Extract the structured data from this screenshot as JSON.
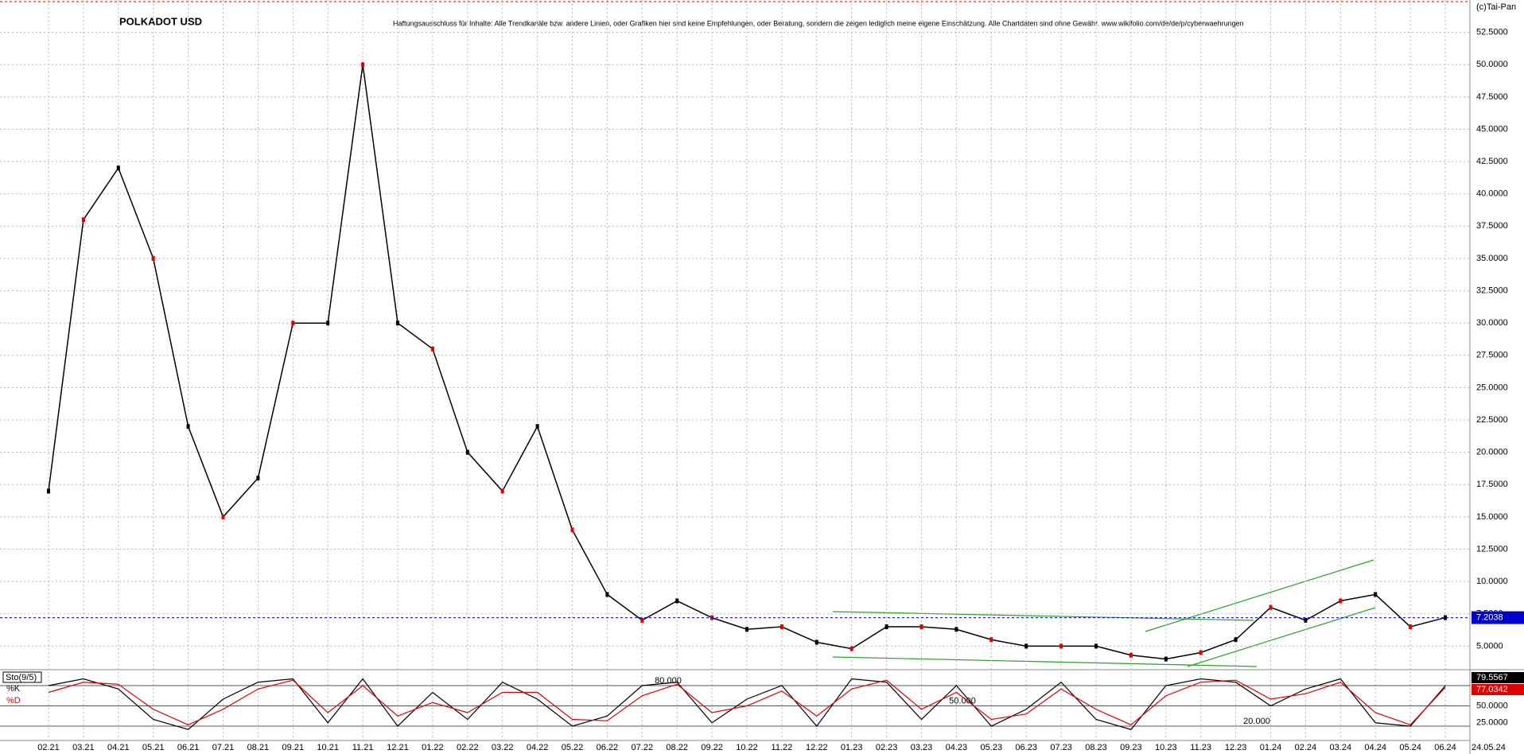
{
  "chart_data": [
    {
      "type": "line",
      "title": "POLKADOT USD",
      "disclaimer": "Haftungsausschluss für Inhalte: Alle Trendkanäle bzw. andere Linien, oder Grafiken hier sind keine Empfehlungen, oder Beratung, sondern die zeigen lediglich meine eigene Einschätzung. Alle Chartdaten sind ohne Gewähr.  www.wikifolio.com/de/de/p/cyberwaehrungen",
      "source": "(c)Tai-Pan",
      "date_label": "24.05.24",
      "categories": [
        "02.21",
        "03.21",
        "04.21",
        "05.21",
        "06.21",
        "07.21",
        "08.21",
        "09.21",
        "10.21",
        "11.21",
        "12.21",
        "01.22",
        "02.22",
        "03.22",
        "04.22",
        "05.22",
        "06.22",
        "07.22",
        "08.22",
        "09.22",
        "10.22",
        "11.22",
        "12.22",
        "01.23",
        "02.23",
        "03.23",
        "04.23",
        "05.23",
        "06.23",
        "07.23",
        "08.23",
        "09.23",
        "10.23",
        "11.23",
        "12.23",
        "01.24",
        "02.24",
        "03.24",
        "04.24",
        "05.24",
        "06.24"
      ],
      "values": [
        17,
        38,
        42,
        35,
        22,
        15,
        18,
        30,
        30,
        50,
        30,
        28,
        20,
        17,
        22,
        14,
        9,
        7,
        8.5,
        7.2,
        6.3,
        6.5,
        5.3,
        4.8,
        6.5,
        6.5,
        6.3,
        5.5,
        5,
        5,
        5,
        4.3,
        4,
        4.5,
        5.5,
        8,
        7,
        8.5,
        9,
        6.5,
        7.2038
      ],
      "color": "#000000",
      "current_color": "#0000cc",
      "ylim": [
        3.3,
        55
      ],
      "yticks": [
        {
          "value": 5,
          "label": "5.0000"
        },
        {
          "value": 7.5,
          "label": "7.5000"
        },
        {
          "value": 10,
          "label": "10.0000"
        },
        {
          "value": 12.5,
          "label": "12.5000"
        },
        {
          "value": 15,
          "label": "15.0000"
        },
        {
          "value": 17.5,
          "label": "17.5000"
        },
        {
          "value": 20,
          "label": "20.0000"
        },
        {
          "value": 22.5,
          "label": "22.5000"
        },
        {
          "value": 25,
          "label": "25.0000"
        },
        {
          "value": 27.5,
          "label": "27.5000"
        },
        {
          "value": 30,
          "label": "30.0000"
        },
        {
          "value": 32.5,
          "label": "32.5000"
        },
        {
          "value": 35,
          "label": "35.0000"
        },
        {
          "value": 37.5,
          "label": "37.5000"
        },
        {
          "value": 40,
          "label": "40.0000"
        },
        {
          "value": 42.5,
          "label": "42.5000"
        },
        {
          "value": 45,
          "label": "45.0000"
        },
        {
          "value": 47.5,
          "label": "47.5000"
        },
        {
          "value": 50,
          "label": "50.0000"
        },
        {
          "value": 52.5,
          "label": "52.5000"
        }
      ],
      "grid": true
    },
    {
      "type": "stochastic",
      "title": "Sto(9/5)",
      "series": [
        {
          "name": "%K",
          "color": "#000000",
          "values": [
            80,
            90,
            75,
            30,
            15,
            60,
            85,
            90,
            25,
            90,
            20,
            70,
            30,
            85,
            60,
            20,
            35,
            80,
            85,
            25,
            60,
            80,
            20,
            90,
            85,
            30,
            80,
            20,
            45,
            85,
            30,
            15,
            80,
            90,
            85,
            50,
            75,
            90,
            25,
            20,
            79.5567
          ]
        },
        {
          "name": "%D",
          "color": "#e00000",
          "values": [
            70,
            85,
            82,
            45,
            22,
            45,
            75,
            88,
            40,
            80,
            35,
            55,
            40,
            70,
            70,
            30,
            28,
            65,
            82,
            40,
            50,
            72,
            35,
            75,
            88,
            45,
            70,
            30,
            38,
            75,
            45,
            22,
            65,
            85,
            88,
            60,
            68,
            85,
            40,
            22,
            77.0342
          ]
        }
      ],
      "ylim": [
        0,
        100
      ],
      "yticks": [
        {
          "value": 25,
          "label": "25.0000"
        },
        {
          "value": 50,
          "label": "50.0000"
        }
      ],
      "levels": [
        {
          "value": 80,
          "label": "80.000"
        },
        {
          "value": 50,
          "label": "50.000"
        },
        {
          "value": 20,
          "label": "20.000"
        }
      ]
    }
  ]
}
